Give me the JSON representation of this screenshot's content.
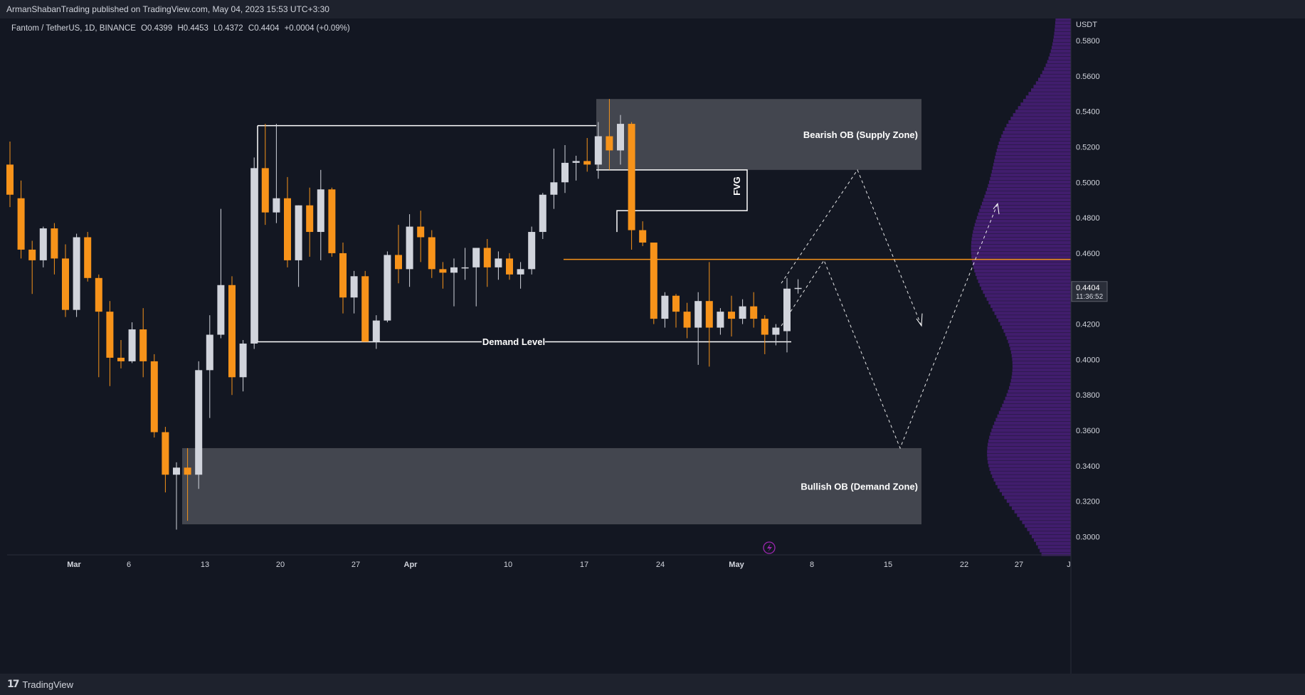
{
  "header": {
    "publish_info": "ArmanShabanTrading published on TradingView.com, May 04, 2023 15:53 UTC+3:30"
  },
  "legend": {
    "symbol": "Fantom / TetherUS, 1D, BINANCE",
    "open": "O0.4399",
    "high": "H0.4453",
    "low": "L0.4372",
    "close": "C0.4404",
    "change": "+0.0004 (+0.09%)"
  },
  "footer": {
    "brand": "TradingView"
  },
  "colors": {
    "background": "#131722",
    "up_candle": "#d1d4dc",
    "down_candle": "#f7931a",
    "zone": "#4a4d55",
    "volume_profile": "#4a1f7a",
    "level_line": "#f7931a"
  },
  "chart_data": {
    "type": "candlestick",
    "symbol": "Fantom / TetherUS",
    "interval": "1D",
    "exchange": "BINANCE",
    "y_axis": {
      "unit": "USDT",
      "ylim": [
        0.29,
        0.6
      ],
      "ticks": [
        "0.5800",
        "0.5600",
        "0.5400",
        "0.5200",
        "0.5000",
        "0.4800",
        "0.4600",
        "0.4400",
        "0.4200",
        "0.4000",
        "0.3800",
        "0.3600",
        "0.3400",
        "0.3200",
        "0.3000"
      ]
    },
    "x_axis": {
      "ticks": [
        "Mar",
        "6",
        "13",
        "20",
        "27",
        "Apr",
        "10",
        "17",
        "24",
        "May",
        "8",
        "15",
        "22",
        "27",
        "J"
      ]
    },
    "last_price": {
      "value": "0.4404",
      "countdown": "11:36:52"
    },
    "candles": [
      {
        "o": 0.51,
        "h": 0.523,
        "l": 0.486,
        "c": 0.493
      },
      {
        "o": 0.491,
        "h": 0.501,
        "l": 0.457,
        "c": 0.462
      },
      {
        "o": 0.462,
        "h": 0.467,
        "l": 0.437,
        "c": 0.456
      },
      {
        "o": 0.456,
        "h": 0.475,
        "l": 0.452,
        "c": 0.474
      },
      {
        "o": 0.474,
        "h": 0.477,
        "l": 0.448,
        "c": 0.457
      },
      {
        "o": 0.457,
        "h": 0.465,
        "l": 0.424,
        "c": 0.428
      },
      {
        "o": 0.428,
        "h": 0.471,
        "l": 0.424,
        "c": 0.469
      },
      {
        "o": 0.469,
        "h": 0.472,
        "l": 0.444,
        "c": 0.446
      },
      {
        "o": 0.446,
        "h": 0.448,
        "l": 0.39,
        "c": 0.427
      },
      {
        "o": 0.427,
        "h": 0.433,
        "l": 0.385,
        "c": 0.401
      },
      {
        "o": 0.401,
        "h": 0.411,
        "l": 0.395,
        "c": 0.399
      },
      {
        "o": 0.399,
        "h": 0.421,
        "l": 0.398,
        "c": 0.417
      },
      {
        "o": 0.417,
        "h": 0.429,
        "l": 0.39,
        "c": 0.399
      },
      {
        "o": 0.399,
        "h": 0.403,
        "l": 0.356,
        "c": 0.359
      },
      {
        "o": 0.359,
        "h": 0.362,
        "l": 0.325,
        "c": 0.335
      },
      {
        "o": 0.335,
        "h": 0.342,
        "l": 0.304,
        "c": 0.339
      },
      {
        "o": 0.339,
        "h": 0.35,
        "l": 0.309,
        "c": 0.335
      },
      {
        "o": 0.335,
        "h": 0.399,
        "l": 0.327,
        "c": 0.394
      },
      {
        "o": 0.394,
        "h": 0.425,
        "l": 0.367,
        "c": 0.414
      },
      {
        "o": 0.414,
        "h": 0.485,
        "l": 0.412,
        "c": 0.442
      },
      {
        "o": 0.442,
        "h": 0.447,
        "l": 0.38,
        "c": 0.39
      },
      {
        "o": 0.39,
        "h": 0.411,
        "l": 0.382,
        "c": 0.409
      },
      {
        "o": 0.409,
        "h": 0.514,
        "l": 0.406,
        "c": 0.508
      },
      {
        "o": 0.508,
        "h": 0.533,
        "l": 0.476,
        "c": 0.483
      },
      {
        "o": 0.483,
        "h": 0.533,
        "l": 0.477,
        "c": 0.491
      },
      {
        "o": 0.491,
        "h": 0.503,
        "l": 0.452,
        "c": 0.456
      },
      {
        "o": 0.456,
        "h": 0.487,
        "l": 0.441,
        "c": 0.487
      },
      {
        "o": 0.487,
        "h": 0.497,
        "l": 0.458,
        "c": 0.472
      },
      {
        "o": 0.472,
        "h": 0.507,
        "l": 0.456,
        "c": 0.496
      },
      {
        "o": 0.496,
        "h": 0.497,
        "l": 0.458,
        "c": 0.46
      },
      {
        "o": 0.46,
        "h": 0.466,
        "l": 0.426,
        "c": 0.435
      },
      {
        "o": 0.435,
        "h": 0.45,
        "l": 0.426,
        "c": 0.447
      },
      {
        "o": 0.447,
        "h": 0.45,
        "l": 0.41,
        "c": 0.41
      },
      {
        "o": 0.41,
        "h": 0.425,
        "l": 0.406,
        "c": 0.422
      },
      {
        "o": 0.422,
        "h": 0.461,
        "l": 0.421,
        "c": 0.459
      },
      {
        "o": 0.459,
        "h": 0.476,
        "l": 0.443,
        "c": 0.451
      },
      {
        "o": 0.451,
        "h": 0.482,
        "l": 0.441,
        "c": 0.475
      },
      {
        "o": 0.475,
        "h": 0.484,
        "l": 0.455,
        "c": 0.469
      },
      {
        "o": 0.469,
        "h": 0.473,
        "l": 0.446,
        "c": 0.451
      },
      {
        "o": 0.451,
        "h": 0.455,
        "l": 0.44,
        "c": 0.449
      },
      {
        "o": 0.449,
        "h": 0.457,
        "l": 0.43,
        "c": 0.452
      },
      {
        "o": 0.452,
        "h": 0.463,
        "l": 0.445,
        "c": 0.452
      },
      {
        "o": 0.452,
        "h": 0.461,
        "l": 0.43,
        "c": 0.463
      },
      {
        "o": 0.463,
        "h": 0.468,
        "l": 0.441,
        "c": 0.452
      },
      {
        "o": 0.452,
        "h": 0.461,
        "l": 0.445,
        "c": 0.457
      },
      {
        "o": 0.457,
        "h": 0.46,
        "l": 0.445,
        "c": 0.448
      },
      {
        "o": 0.448,
        "h": 0.455,
        "l": 0.44,
        "c": 0.451
      },
      {
        "o": 0.451,
        "h": 0.475,
        "l": 0.448,
        "c": 0.472
      },
      {
        "o": 0.472,
        "h": 0.494,
        "l": 0.468,
        "c": 0.493
      },
      {
        "o": 0.493,
        "h": 0.519,
        "l": 0.485,
        "c": 0.5
      },
      {
        "o": 0.5,
        "h": 0.521,
        "l": 0.494,
        "c": 0.511
      },
      {
        "o": 0.511,
        "h": 0.515,
        "l": 0.501,
        "c": 0.512
      },
      {
        "o": 0.512,
        "h": 0.525,
        "l": 0.506,
        "c": 0.51
      },
      {
        "o": 0.51,
        "h": 0.534,
        "l": 0.502,
        "c": 0.526
      },
      {
        "o": 0.526,
        "h": 0.547,
        "l": 0.507,
        "c": 0.518
      },
      {
        "o": 0.518,
        "h": 0.538,
        "l": 0.51,
        "c": 0.533
      },
      {
        "o": 0.533,
        "h": 0.534,
        "l": 0.462,
        "c": 0.473
      },
      {
        "o": 0.473,
        "h": 0.478,
        "l": 0.464,
        "c": 0.466
      },
      {
        "o": 0.466,
        "h": 0.466,
        "l": 0.42,
        "c": 0.423
      },
      {
        "o": 0.423,
        "h": 0.438,
        "l": 0.418,
        "c": 0.436
      },
      {
        "o": 0.436,
        "h": 0.437,
        "l": 0.418,
        "c": 0.427
      },
      {
        "o": 0.427,
        "h": 0.432,
        "l": 0.412,
        "c": 0.418
      },
      {
        "o": 0.418,
        "h": 0.438,
        "l": 0.397,
        "c": 0.433
      },
      {
        "o": 0.433,
        "h": 0.455,
        "l": 0.396,
        "c": 0.418
      },
      {
        "o": 0.418,
        "h": 0.429,
        "l": 0.414,
        "c": 0.427
      },
      {
        "o": 0.427,
        "h": 0.436,
        "l": 0.413,
        "c": 0.423
      },
      {
        "o": 0.423,
        "h": 0.434,
        "l": 0.42,
        "c": 0.43
      },
      {
        "o": 0.43,
        "h": 0.438,
        "l": 0.418,
        "c": 0.423
      },
      {
        "o": 0.423,
        "h": 0.425,
        "l": 0.403,
        "c": 0.414
      },
      {
        "o": 0.414,
        "h": 0.42,
        "l": 0.408,
        "c": 0.418
      },
      {
        "o": 0.416,
        "h": 0.446,
        "l": 0.404,
        "c": 0.44
      },
      {
        "o": 0.4399,
        "h": 0.4453,
        "l": 0.4372,
        "c": 0.4404
      }
    ],
    "zones": [
      {
        "label": "Bearish OB (Supply Zone)",
        "top": 0.547,
        "bottom": 0.507
      },
      {
        "label": "Bullish OB (Demand Zone)",
        "top": 0.35,
        "bottom": 0.307
      }
    ],
    "annotations": [
      {
        "label": "FVG",
        "type": "bracket",
        "top": 0.507,
        "bottom": 0.484
      },
      {
        "label": "Demand Level",
        "type": "hline",
        "value": 0.41
      },
      {
        "type": "hline",
        "value": 0.4565
      },
      {
        "type": "rect",
        "top": 0.532,
        "bottom": 0.41
      }
    ],
    "projections": [
      {
        "points": [
          [
            0.443
          ],
          [
            0.507
          ],
          [
            0.419
          ]
        ]
      },
      {
        "points": [
          [
            0.419
          ],
          [
            0.456
          ],
          [
            0.35
          ],
          [
            0.488
          ]
        ]
      }
    ]
  }
}
